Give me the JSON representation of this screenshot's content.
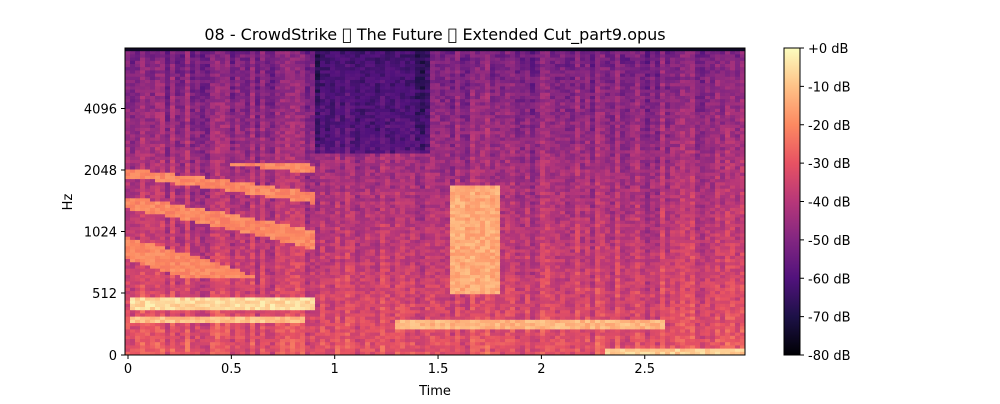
{
  "chart_data": {
    "type": "heatmap",
    "title": "08 - CrowdStrike \u0000 The Future \u0000 Extended Cut_part9.opus",
    "xlabel": "Time",
    "ylabel": "Hz",
    "xlim": [
      0,
      3.0
    ],
    "x_ticks": [
      {
        "value": 0,
        "label": "0"
      },
      {
        "value": 0.5,
        "label": "0.5"
      },
      {
        "value": 1,
        "label": "1"
      },
      {
        "value": 1.5,
        "label": "1.5"
      },
      {
        "value": 2,
        "label": "2"
      },
      {
        "value": 2.5,
        "label": "2.5"
      }
    ],
    "y_scale": "log2-above-512",
    "y_ticks": [
      {
        "value": 0,
        "label": "0"
      },
      {
        "value": 512,
        "label": "512"
      },
      {
        "value": 1024,
        "label": "1024"
      },
      {
        "value": 2048,
        "label": "2048"
      },
      {
        "value": 4096,
        "label": "4096"
      }
    ],
    "colorbar": {
      "colormap": "magma",
      "range_db": [
        -80,
        0
      ],
      "ticks": [
        "+0 dB",
        "-10 dB",
        "-20 dB",
        "-30 dB",
        "-40 dB",
        "-50 dB",
        "-60 dB",
        "-70 dB",
        "-80 dB"
      ]
    },
    "colormap_stops": [
      "#000004",
      "#1d1147",
      "#51127c",
      "#822681",
      "#b73779",
      "#e75263",
      "#fc8961",
      "#fec287",
      "#fcfdbf"
    ],
    "features_db": [
      {
        "name": "low harmonic band",
        "t": [
          0.0,
          0.9
        ],
        "f": [
          380,
          470
        ],
        "db": -6
      },
      {
        "name": "second harmonic band",
        "t": [
          0.0,
          0.85
        ],
        "f": [
          260,
          320
        ],
        "db": -10
      },
      {
        "name": "mid harmonic at 1.6 s",
        "t": [
          1.55,
          1.8
        ],
        "f": [
          500,
          1700
        ],
        "db": -14
      },
      {
        "name": "long low trail",
        "t": [
          1.3,
          2.6
        ],
        "f": [
          220,
          300
        ],
        "db": -12
      },
      {
        "name": "bright floor",
        "t": [
          2.3,
          3.0
        ],
        "f": [
          0,
          60
        ],
        "db": -8
      },
      {
        "name": "quiet region near 1 s",
        "t": [
          0.95,
          1.4
        ],
        "f": [
          2500,
          8000
        ],
        "db": -62
      }
    ]
  }
}
